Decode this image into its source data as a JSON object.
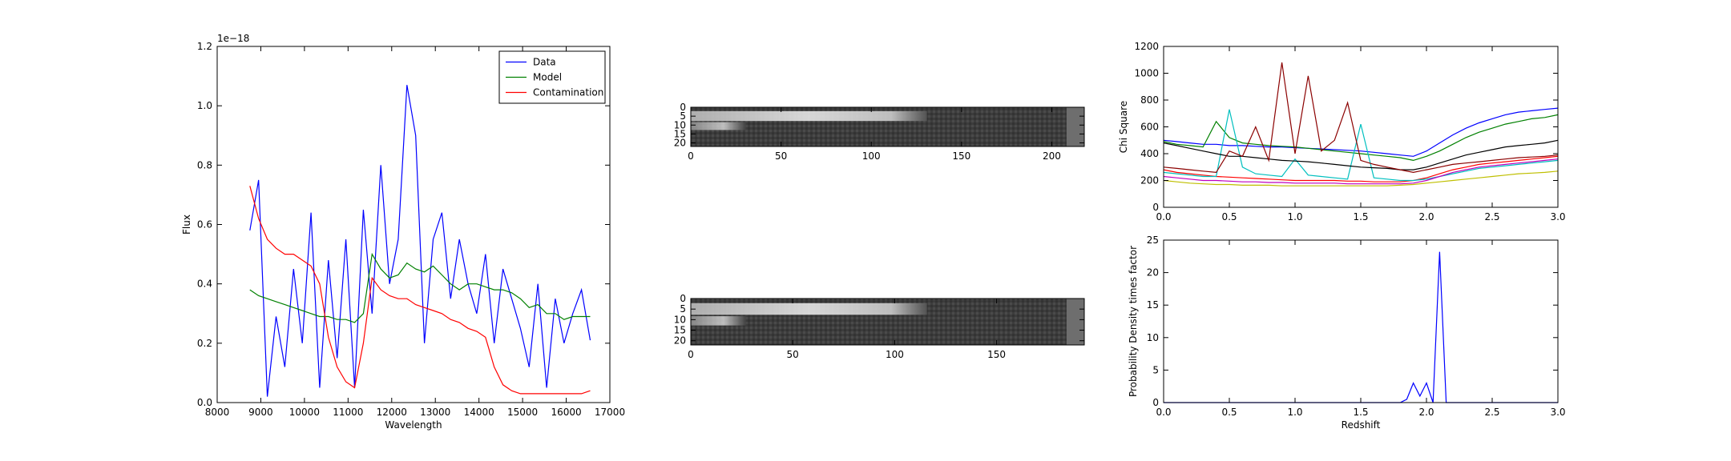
{
  "chart_data": [
    {
      "type": "line",
      "xlabel": "Wavelength",
      "ylabel": "Flux",
      "y_offset_label": "1e−18",
      "legend": "upper right",
      "x": [
        8750,
        8950,
        9150,
        9350,
        9550,
        9750,
        9950,
        10150,
        10350,
        10550,
        10750,
        10950,
        11150,
        11350,
        11550,
        11750,
        11950,
        12150,
        12350,
        12550,
        12750,
        12950,
        13150,
        13350,
        13550,
        13750,
        13950,
        14150,
        14350,
        14550,
        14750,
        14950,
        15150,
        15350,
        15550,
        15750,
        15950,
        16150,
        16350,
        16550
      ],
      "series": [
        {
          "name": "Data",
          "color": "#0000ff",
          "values": [
            0.58,
            0.75,
            0.02,
            0.29,
            0.12,
            0.45,
            0.2,
            0.64,
            0.05,
            0.48,
            0.15,
            0.55,
            0.05,
            0.65,
            0.3,
            0.8,
            0.4,
            0.55,
            1.07,
            0.9,
            0.2,
            0.55,
            0.64,
            0.35,
            0.55,
            0.4,
            0.3,
            0.5,
            0.2,
            0.45,
            0.35,
            0.25,
            0.12,
            0.4,
            0.05,
            0.35,
            0.2,
            0.3,
            0.38,
            0.21
          ]
        },
        {
          "name": "Model",
          "color": "#008000",
          "values": [
            0.38,
            0.36,
            0.35,
            0.34,
            0.33,
            0.32,
            0.31,
            0.3,
            0.29,
            0.29,
            0.28,
            0.28,
            0.27,
            0.3,
            0.5,
            0.45,
            0.42,
            0.43,
            0.47,
            0.45,
            0.44,
            0.46,
            0.43,
            0.4,
            0.38,
            0.4,
            0.4,
            0.39,
            0.38,
            0.38,
            0.37,
            0.35,
            0.32,
            0.33,
            0.3,
            0.3,
            0.28,
            0.29,
            0.29,
            0.29
          ]
        },
        {
          "name": "Contamination",
          "color": "#ff0000",
          "values": [
            0.73,
            0.62,
            0.55,
            0.52,
            0.5,
            0.5,
            0.48,
            0.46,
            0.4,
            0.22,
            0.12,
            0.07,
            0.05,
            0.2,
            0.42,
            0.38,
            0.36,
            0.35,
            0.35,
            0.33,
            0.32,
            0.31,
            0.3,
            0.28,
            0.27,
            0.25,
            0.24,
            0.22,
            0.12,
            0.06,
            0.04,
            0.03,
            0.03,
            0.03,
            0.03,
            0.03,
            0.03,
            0.03,
            0.03,
            0.04
          ]
        }
      ],
      "xlim": [
        8000,
        17000
      ],
      "xticks": [
        8000,
        9000,
        10000,
        11000,
        12000,
        13000,
        14000,
        15000,
        16000,
        17000
      ],
      "ylim": [
        0,
        1.2
      ],
      "yticks": [
        {
          "value": 0,
          "label": "0.0"
        },
        {
          "value": 0.2,
          "label": "0.2"
        },
        {
          "value": 0.4,
          "label": "0.4"
        },
        {
          "value": 0.6,
          "label": "0.6"
        },
        {
          "value": 0.8,
          "label": "0.8"
        },
        {
          "value": 1.0,
          "label": "1.0"
        },
        {
          "value": 1.2,
          "label": "1.2"
        }
      ]
    },
    {
      "type": "image",
      "xlim": [
        0,
        218
      ],
      "xticks": [
        0,
        50,
        100,
        150,
        200
      ],
      "ylim": [
        22,
        0
      ],
      "yticks": [
        0,
        5,
        10,
        15,
        20
      ]
    },
    {
      "type": "image",
      "xlim": [
        0,
        193
      ],
      "xticks": [
        0,
        50,
        100,
        150
      ],
      "ylim": [
        22,
        0
      ],
      "yticks": [
        0,
        5,
        10,
        15,
        20
      ]
    },
    {
      "type": "line",
      "ylabel": "Chi Square",
      "x": [
        0,
        0.1,
        0.2,
        0.3,
        0.4,
        0.5,
        0.6,
        0.7,
        0.8,
        0.9,
        1.0,
        1.1,
        1.2,
        1.3,
        1.4,
        1.5,
        1.6,
        1.7,
        1.8,
        1.9,
        2.0,
        2.1,
        2.2,
        2.3,
        2.4,
        2.5,
        2.6,
        2.7,
        2.8,
        2.9,
        3.0
      ],
      "series": [
        {
          "color": "#0000ff",
          "values": [
            500,
            490,
            480,
            470,
            470,
            460,
            460,
            455,
            450,
            450,
            445,
            440,
            435,
            430,
            425,
            420,
            410,
            400,
            390,
            380,
            420,
            480,
            540,
            590,
            630,
            660,
            690,
            710,
            720,
            730,
            740
          ]
        },
        {
          "color": "#008000",
          "values": [
            490,
            470,
            460,
            450,
            640,
            520,
            480,
            470,
            460,
            455,
            450,
            440,
            430,
            420,
            410,
            400,
            390,
            380,
            370,
            350,
            380,
            420,
            470,
            520,
            560,
            590,
            620,
            640,
            660,
            670,
            690
          ]
        },
        {
          "color": "#ff0000",
          "values": [
            280,
            260,
            250,
            240,
            230,
            225,
            220,
            215,
            210,
            205,
            200,
            200,
            200,
            200,
            195,
            195,
            190,
            190,
            190,
            200,
            220,
            250,
            280,
            300,
            320,
            330,
            340,
            350,
            360,
            370,
            380
          ]
        },
        {
          "color": "#00bfbf",
          "values": [
            260,
            250,
            240,
            230,
            230,
            730,
            300,
            250,
            240,
            230,
            360,
            240,
            230,
            220,
            210,
            620,
            220,
            210,
            200,
            200,
            210,
            230,
            250,
            270,
            290,
            300,
            310,
            320,
            330,
            340,
            350
          ]
        },
        {
          "color": "#bf00bf",
          "values": [
            230,
            220,
            210,
            200,
            200,
            195,
            190,
            190,
            185,
            185,
            180,
            180,
            180,
            180,
            175,
            175,
            175,
            175,
            175,
            180,
            200,
            230,
            260,
            280,
            300,
            310,
            320,
            330,
            340,
            350,
            360
          ]
        },
        {
          "color": "#bfbf00",
          "values": [
            200,
            190,
            180,
            175,
            170,
            170,
            165,
            165,
            165,
            160,
            160,
            160,
            160,
            160,
            160,
            160,
            160,
            160,
            165,
            170,
            180,
            190,
            200,
            210,
            220,
            230,
            240,
            250,
            255,
            260,
            270
          ]
        },
        {
          "color": "#000000",
          "values": [
            480,
            460,
            440,
            420,
            400,
            380,
            380,
            370,
            360,
            350,
            345,
            340,
            330,
            320,
            310,
            300,
            295,
            290,
            280,
            280,
            300,
            330,
            360,
            390,
            410,
            430,
            450,
            460,
            470,
            480,
            500
          ]
        },
        {
          "color": "#8b0000",
          "values": [
            300,
            290,
            280,
            270,
            260,
            420,
            380,
            600,
            350,
            1080,
            400,
            980,
            420,
            500,
            780,
            350,
            320,
            300,
            280,
            260,
            280,
            300,
            320,
            330,
            340,
            350,
            360,
            370,
            375,
            380,
            390
          ]
        }
      ],
      "xlim": [
        0,
        3
      ],
      "xticks": [
        {
          "value": 0,
          "label": "0.0"
        },
        {
          "value": 0.5,
          "label": "0.5"
        },
        {
          "value": 1.0,
          "label": "1.0"
        },
        {
          "value": 1.5,
          "label": "1.5"
        },
        {
          "value": 2.0,
          "label": "2.0"
        },
        {
          "value": 2.5,
          "label": "2.5"
        },
        {
          "value": 3.0,
          "label": "3.0"
        }
      ],
      "ylim": [
        0,
        1200
      ],
      "yticks": [
        0,
        200,
        400,
        600,
        800,
        1000,
        1200
      ]
    },
    {
      "type": "line",
      "xlabel": "Redshift",
      "ylabel": "Probability Density times factor",
      "x": [
        0,
        1.5,
        1.8,
        1.85,
        1.9,
        1.95,
        2.0,
        2.05,
        2.1,
        2.15,
        3.0
      ],
      "values": [
        0,
        0,
        0,
        0.5,
        3,
        1,
        3,
        0,
        23.2,
        0,
        0
      ],
      "color": "#0000ff",
      "xlim": [
        0,
        3
      ],
      "xticks": [
        {
          "value": 0,
          "label": "0.0"
        },
        {
          "value": 0.5,
          "label": "0.5"
        },
        {
          "value": 1.0,
          "label": "1.0"
        },
        {
          "value": 1.5,
          "label": "1.5"
        },
        {
          "value": 2.0,
          "label": "2.0"
        },
        {
          "value": 2.5,
          "label": "2.5"
        },
        {
          "value": 3.0,
          "label": "3.0"
        }
      ],
      "ylim": [
        0,
        25
      ],
      "yticks": [
        0,
        5,
        10,
        15,
        20,
        25
      ]
    }
  ]
}
